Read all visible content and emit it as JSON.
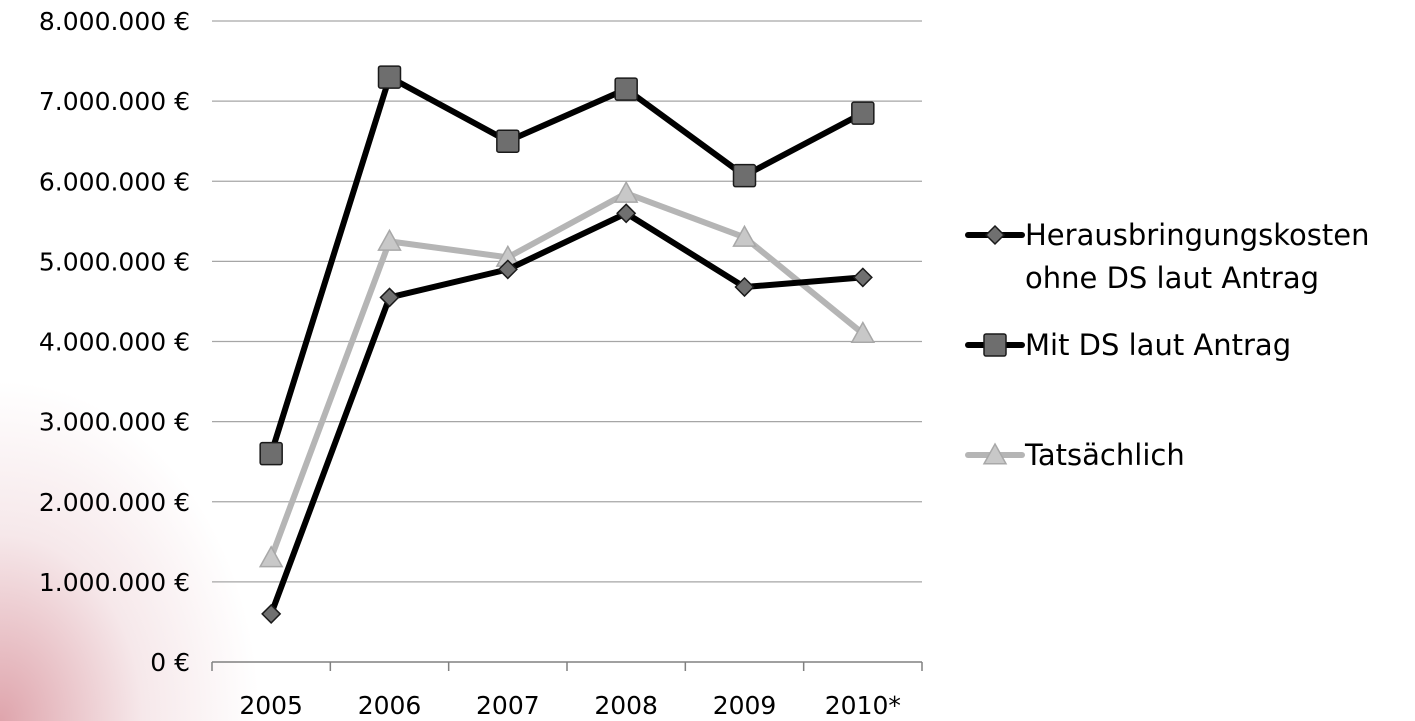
{
  "chart_data": {
    "type": "line",
    "categories": [
      "2005",
      "2006",
      "2007",
      "2008",
      "2009",
      "2010*"
    ],
    "y_ticks": [
      "0 €",
      "1.000.000 €",
      "2.000.000 €",
      "3.000.000 €",
      "4.000.000 €",
      "5.000.000 €",
      "6.000.000 €",
      "7.000.000 €",
      "8.000.000 €"
    ],
    "ylim": [
      0,
      8000000
    ],
    "grid": true,
    "legend_position": "right",
    "series": [
      {
        "name_lines": [
          "Herausbringungskosten",
          "ohne DS laut Antrag"
        ],
        "marker": "diamond",
        "color": "#000000",
        "marker_fill": "#707070",
        "values": [
          600000,
          4550000,
          4900000,
          5600000,
          4680000,
          4800000
        ]
      },
      {
        "name_lines": [
          "Mit DS laut Antrag"
        ],
        "marker": "square",
        "color": "#000000",
        "marker_fill": "#6e6e6e",
        "values": [
          2600000,
          7300000,
          6500000,
          7150000,
          6070000,
          6850000
        ]
      },
      {
        "name_lines": [
          "Tatsächlich"
        ],
        "marker": "triangle",
        "color": "#b5b5b5",
        "marker_fill": "#c8c8c8",
        "values": [
          1300000,
          5250000,
          5050000,
          5850000,
          5300000,
          4100000
        ]
      }
    ]
  }
}
